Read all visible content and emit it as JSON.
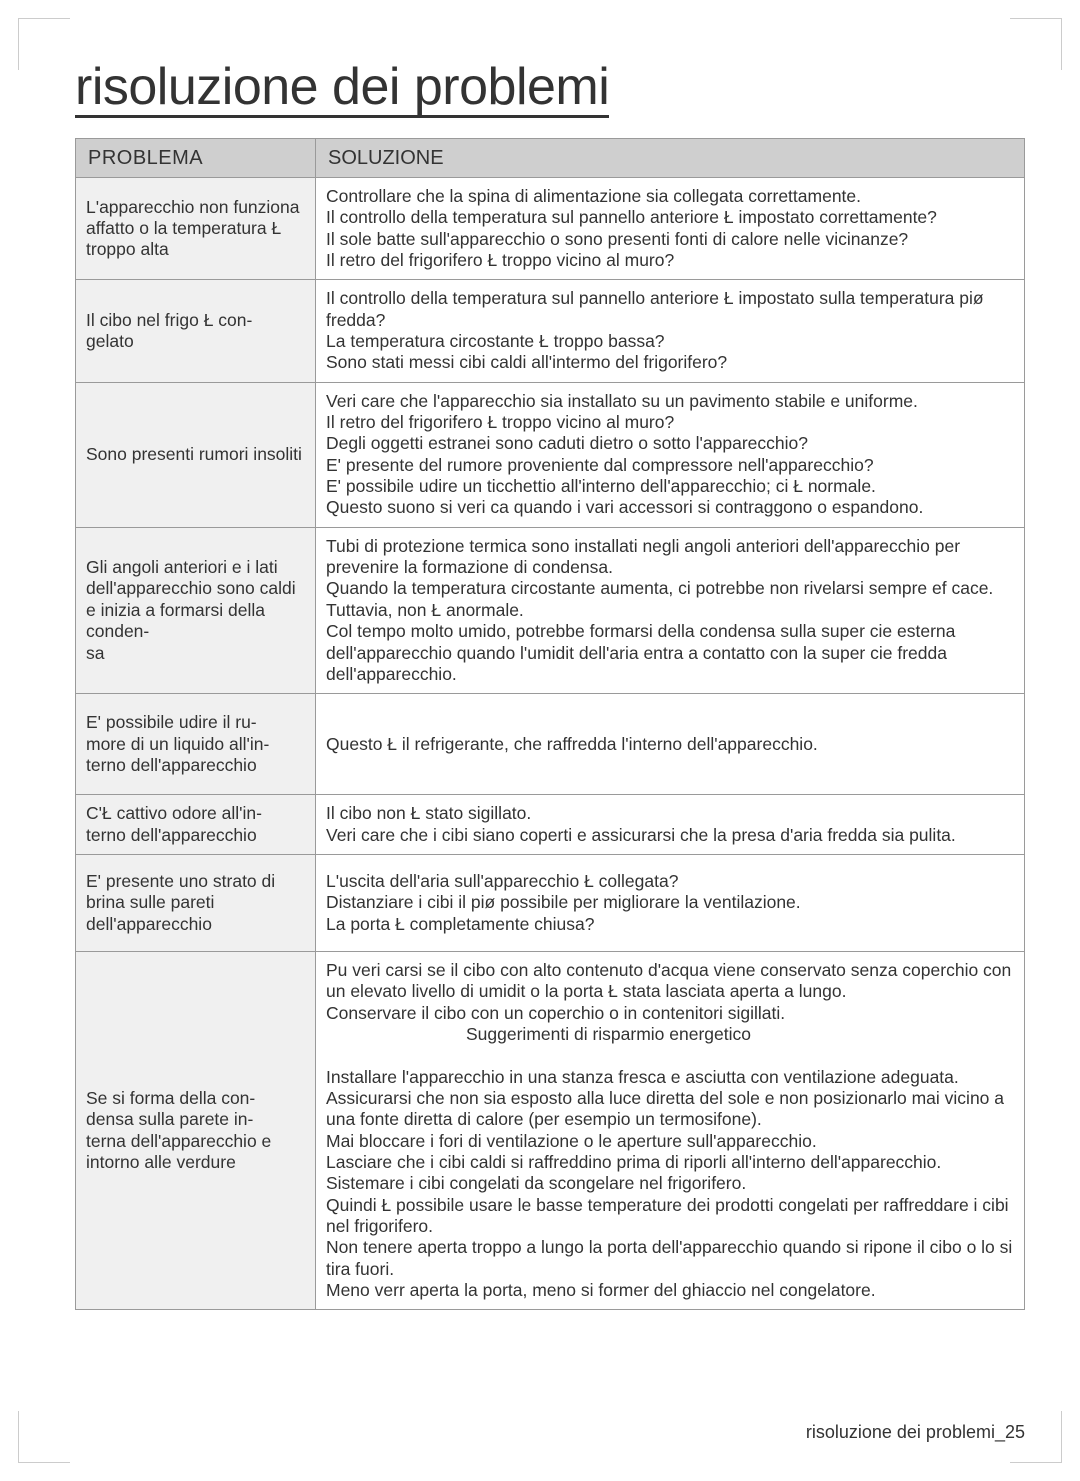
{
  "title": "risoluzione dei problemi",
  "columns": {
    "problem": "PROBLEMA",
    "solution": "SOLUZIONE"
  },
  "rows": [
    {
      "problem": "L'apparecchio non funziona affatto o la temperatura Ł troppo alta",
      "solution": "Controllare che la spina di alimentazione sia collegata correttamente.\nIl controllo della temperatura sul pannello anteriore Ł impostato correttamente?\nIl sole batte sull'apparecchio o sono presenti fonti di calore nelle vicinanze?\nIl retro del frigorifero Ł troppo vicino al muro?"
    },
    {
      "problem": "Il cibo nel frigo Ł con-\ngelato",
      "solution": "Il controllo della temperatura sul pannello anteriore Ł impostato sulla temperatura piø fredda?\nLa temperatura circostante Ł troppo bassa?\nSono stati messi cibi caldi all'intermo del frigorifero?"
    },
    {
      "problem": "Sono presenti rumori insoliti",
      "solution": "Veri care che l'apparecchio sia installato su un pavimento stabile e uniforme.\nIl retro del frigorifero Ł troppo vicino al muro?\nDegli oggetti estranei sono caduti dietro o sotto l'apparecchio?\nE' presente del rumore proveniente dal compressore nell'apparecchio?\nE' possibile udire un ticchettio all'interno dell'apparecchio; ci  Ł normale.\nQuesto suono si veri ca quando i vari accessori si contraggono o espandono."
    },
    {
      "problem": "Gli angoli anteriori e i lati dell'apparecchio sono caldi e inizia a formarsi della conden-\nsa",
      "solution": "Tubi di protezione termica sono installati negli angoli anteriori dell'apparecchio per prevenire la formazione di condensa.\nQuando la temperatura circostante aumenta, ci  potrebbe non rivelarsi sempre ef cace. Tuttavia, non Ł anormale.\nCol tempo molto umido, potrebbe formarsi della condensa sulla super cie esterna dell'apparecchio quando l'umidit  dell'aria entra a contatto con la super cie fredda dell'apparecchio."
    },
    {
      "problem": "E' possibile udire il ru-\nmore di un liquido all'in-\nterno dell'apparecchio",
      "solution": "Questo Ł il refrigerante, che raffredda l'interno dell'apparecchio."
    },
    {
      "problem": "C'Ł cattivo odore all'in-\nterno dell'apparecchio",
      "solution": "Il cibo non Ł stato sigillato.\nVeri care che i cibi siano coperti e assicurarsi che la presa d'aria fredda sia pulita."
    },
    {
      "problem": "E' presente uno strato di brina sulle pareti dell'apparecchio",
      "solution": "L'uscita dell'aria sull'apparecchio Ł collegata?\nDistanziare i cibi il piø possibile per migliorare la ventilazione.\nLa porta Ł completamente chiusa?"
    },
    {
      "problem": "Se si forma della con-\ndensa sulla parete in-\nterna dell'apparecchio e intorno alle verdure",
      "solution": "Pu  veri carsi se il cibo con alto contenuto d'acqua viene conservato senza coperchio con un elevato livello di umidit  o la porta Ł stata lasciata aperta a lungo.\nConservare il cibo con un coperchio o in contenitori sigillati.\n<<INDENT>>Suggerimenti di risparmio energetico\nInstallare l'apparecchio in una stanza fresca e asciutta con ventilazione adeguata. Assicurarsi che non sia esposto alla luce diretta del sole e non posizionarlo mai vicino a una fonte diretta di calore (per esempio un termosifone).\nMai bloccare i fori di ventilazione o le aperture sull'apparecchio.\nLasciare che i cibi caldi si raffreddino prima di riporli all'interno dell'apparecchio.\nSistemare i cibi congelati da scongelare nel frigorifero.\nQuindi Ł possibile usare le basse temperature dei prodotti congelati per raffreddare i cibi nel frigorifero.\nNon tenere aperta troppo a lungo la porta dell'apparecchio quando si ripone il cibo o lo si tira fuori.\nMeno verr  aperta la porta, meno si former  del ghiaccio nel congelatore."
    }
  ],
  "footer": "risoluzione dei problemi_25",
  "colors": {
    "header_bg": "#cfcfcf",
    "left_bg": "#f0f0f0",
    "right_bg": "#ffffff",
    "border": "#9a9a9a",
    "text": "#333333"
  },
  "fonts": {
    "title_size": 52,
    "cell_size": 17.5,
    "header_size": 20,
    "footer_size": 18
  }
}
